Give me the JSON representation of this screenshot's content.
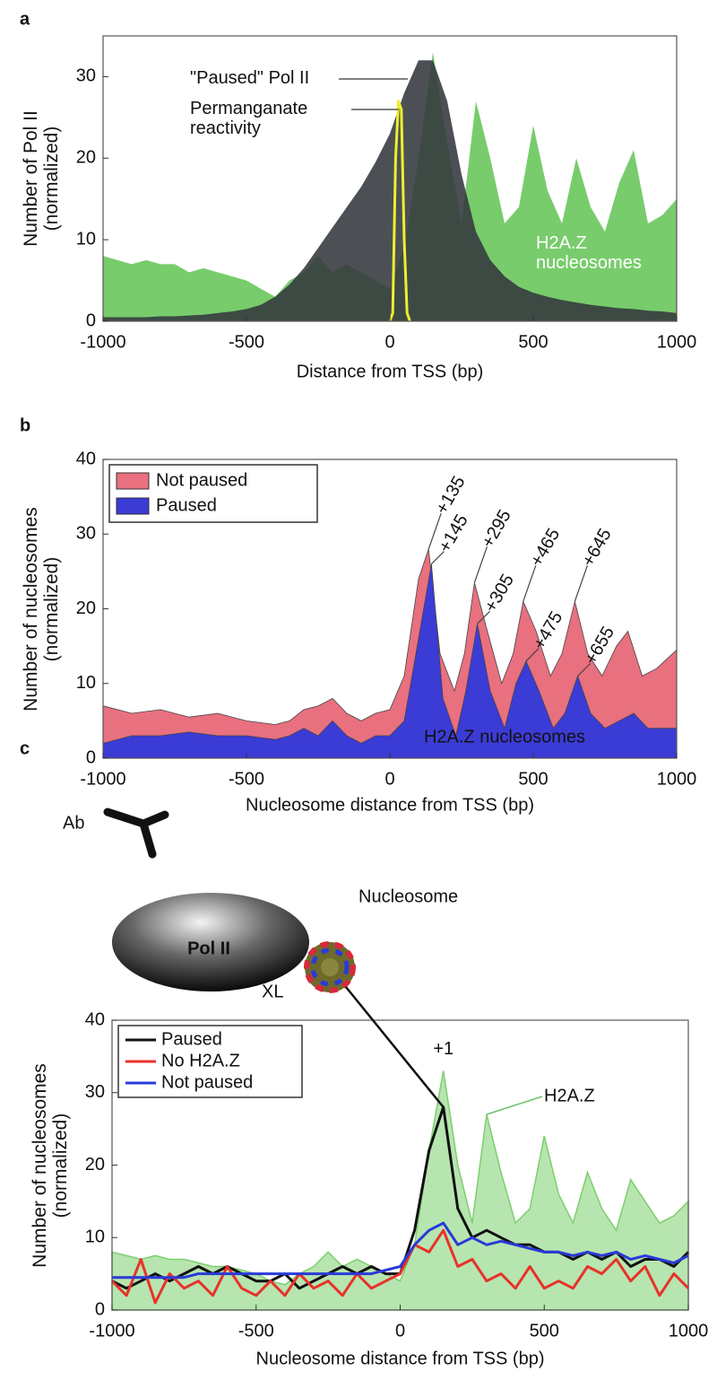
{
  "chart_data": [
    {
      "panel": "a",
      "type": "area",
      "xlabel": "Distance from TSS (bp)",
      "ylabel": "Number of Pol II (normalized)",
      "xlim": [
        -1000,
        1000
      ],
      "ylim": [
        0,
        35
      ],
      "xticks": [
        -1000,
        -500,
        0,
        500,
        1000
      ],
      "yticks": [
        0,
        10,
        20,
        30
      ],
      "series": [
        {
          "name": "H2A.Z nucleosomes",
          "color": "#78cc6c",
          "x": [
            -1000,
            -950,
            -900,
            -850,
            -800,
            -750,
            -700,
            -650,
            -600,
            -550,
            -500,
            -450,
            -400,
            -350,
            -300,
            -250,
            -200,
            -150,
            -100,
            -50,
            0,
            50,
            100,
            150,
            200,
            250,
            300,
            350,
            400,
            450,
            500,
            550,
            600,
            650,
            700,
            750,
            800,
            850,
            900,
            950,
            1000
          ],
          "values": [
            8,
            7.5,
            7,
            7.5,
            7,
            7,
            6,
            6.5,
            6,
            5.5,
            5,
            4,
            3,
            5,
            6,
            8,
            6,
            7,
            6,
            5,
            4,
            9,
            20,
            33,
            22,
            12,
            27,
            20,
            12,
            14,
            24,
            16,
            12,
            20,
            14,
            11,
            17,
            21,
            12,
            13,
            15
          ]
        },
        {
          "name": "\"Paused\" Pol II",
          "color": "#33383d",
          "x": [
            -1000,
            -950,
            -900,
            -850,
            -800,
            -750,
            -700,
            -650,
            -600,
            -550,
            -500,
            -450,
            -400,
            -350,
            -300,
            -250,
            -200,
            -150,
            -100,
            -50,
            0,
            50,
            100,
            150,
            200,
            250,
            300,
            350,
            400,
            450,
            500,
            550,
            600,
            650,
            700,
            750,
            800,
            850,
            900,
            950,
            1000
          ],
          "values": [
            0.5,
            0.5,
            0.5,
            0.5,
            0.6,
            0.6,
            0.7,
            0.8,
            1,
            1.2,
            1.5,
            2,
            3,
            4.5,
            6.5,
            9,
            11.5,
            14,
            16.5,
            19.5,
            23,
            28,
            32,
            32,
            27,
            18,
            11,
            7.5,
            5.5,
            4.2,
            3.5,
            3,
            2.6,
            2.3,
            2,
            1.8,
            1.6,
            1.5,
            1.3,
            1.2,
            1
          ]
        },
        {
          "name": "Permanganate reactivity",
          "color": "#eeee30",
          "type": "line",
          "x": [
            0,
            10,
            20,
            30,
            40,
            50,
            60,
            70
          ],
          "values": [
            0,
            1,
            20,
            27,
            26,
            10,
            1,
            0
          ]
        }
      ]
    },
    {
      "panel": "b",
      "type": "area",
      "xlabel": "Nucleosome distance from TSS (bp)",
      "ylabel": "Number of nucleosomes (normalized)",
      "xlim": [
        -1000,
        1000
      ],
      "ylim": [
        0,
        40
      ],
      "xticks": [
        -1000,
        -500,
        0,
        500,
        1000
      ],
      "yticks": [
        0,
        10,
        20,
        30,
        40
      ],
      "legend": "upper left",
      "annotation": "H2A.Z nucleosomes",
      "series": [
        {
          "name": "Not paused",
          "color": "#e8707f",
          "x": [
            -1000,
            -900,
            -800,
            -700,
            -600,
            -500,
            -400,
            -350,
            -300,
            -250,
            -200,
            -150,
            -100,
            -50,
            0,
            50,
            100,
            135,
            175,
            225,
            260,
            295,
            340,
            390,
            430,
            465,
            510,
            560,
            600,
            645,
            690,
            740,
            790,
            830,
            880,
            930,
            1000
          ],
          "values": [
            7,
            6,
            6.5,
            5.5,
            6,
            5,
            4.5,
            5,
            6.5,
            7,
            8,
            6,
            5,
            6,
            6.5,
            11,
            24,
            28,
            14,
            9,
            14,
            23.5,
            17,
            10,
            14,
            21,
            17,
            11,
            14,
            21,
            14,
            11,
            15,
            17,
            11,
            12,
            14.5
          ]
        },
        {
          "name": "Paused",
          "color": "#3b3bd6",
          "x": [
            -1000,
            -900,
            -800,
            -700,
            -600,
            -500,
            -400,
            -350,
            -300,
            -250,
            -200,
            -150,
            -100,
            -50,
            0,
            50,
            100,
            145,
            185,
            230,
            265,
            305,
            350,
            400,
            440,
            475,
            520,
            570,
            610,
            655,
            700,
            750,
            800,
            850,
            900,
            950,
            1000
          ],
          "values": [
            2,
            3,
            3,
            3.5,
            3,
            3,
            2.5,
            3,
            4,
            3,
            5,
            3,
            2,
            3,
            3,
            5,
            16,
            26,
            8,
            3,
            9,
            18,
            9,
            4,
            10,
            13,
            9,
            4,
            6,
            11,
            6,
            4,
            5,
            6,
            4,
            4,
            4
          ]
        }
      ],
      "peak_labels": [
        {
          "text": "+135",
          "x": 135,
          "series": 0
        },
        {
          "text": "+145",
          "x": 145,
          "series": 1
        },
        {
          "text": "+295",
          "x": 295,
          "series": 0
        },
        {
          "text": "+305",
          "x": 305,
          "series": 1
        },
        {
          "text": "+465",
          "x": 465,
          "series": 0
        },
        {
          "text": "+475",
          "x": 475,
          "series": 1
        },
        {
          "text": "+645",
          "x": 645,
          "series": 0
        },
        {
          "text": "+655",
          "x": 655,
          "series": 1
        }
      ]
    },
    {
      "panel": "c",
      "type": "line",
      "xlabel": "Nucleosome distance from TSS (bp)",
      "ylabel": "Number of nucleosomes (normalized)",
      "xlim": [
        -1000,
        1000
      ],
      "ylim": [
        0,
        40
      ],
      "xticks": [
        -1000,
        -500,
        0,
        500,
        1000
      ],
      "yticks": [
        0,
        10,
        20,
        30,
        40
      ],
      "legend": "upper left",
      "annotation": "+1",
      "diagram": {
        "antibody": "Ab",
        "polymerase": "Pol II",
        "nucleosome": "Nucleosome",
        "crosslink": "XL"
      },
      "x": [
        -1000,
        -950,
        -900,
        -850,
        -800,
        -750,
        -700,
        -650,
        -600,
        -550,
        -500,
        -450,
        -400,
        -350,
        -300,
        -250,
        -200,
        -150,
        -100,
        -50,
        0,
        50,
        100,
        150,
        200,
        250,
        300,
        350,
        400,
        450,
        500,
        550,
        600,
        650,
        700,
        750,
        800,
        850,
        900,
        950,
        1000
      ],
      "series": [
        {
          "name": "H2A.Z",
          "color": "#7ccf6e",
          "type": "area",
          "legend": false,
          "values": [
            8,
            7.5,
            7,
            7.5,
            7,
            7,
            6.5,
            6,
            6,
            5.5,
            5,
            4,
            3.5,
            5,
            6,
            8,
            6,
            7,
            6,
            5,
            4,
            9,
            22,
            33,
            20,
            12,
            27,
            19,
            12,
            14,
            24,
            16,
            12,
            19,
            14,
            11,
            18,
            15,
            12,
            13,
            15
          ]
        },
        {
          "name": "Paused",
          "color": "#111111",
          "values": [
            4,
            3,
            4,
            5,
            4,
            5,
            6,
            5,
            6,
            5,
            4,
            4,
            5,
            3,
            4,
            5,
            6,
            5,
            6,
            5,
            5,
            11,
            22,
            28,
            14,
            10,
            11,
            10,
            9,
            9,
            8,
            8,
            7,
            8,
            7,
            8,
            6,
            7,
            7,
            6,
            8
          ]
        },
        {
          "name": "No H2A.Z",
          "color": "#e8322a",
          "values": [
            4,
            2,
            7,
            1,
            5,
            3,
            4,
            2,
            6,
            3,
            2,
            4,
            2,
            5,
            3,
            4,
            2,
            5,
            3,
            4,
            5,
            9,
            8,
            11,
            6,
            7,
            4,
            5,
            3,
            6,
            3,
            4,
            3,
            6,
            5,
            7,
            4,
            6,
            2,
            5,
            3
          ]
        },
        {
          "name": "Not paused",
          "color": "#2a3ad8",
          "values": [
            4.5,
            4.5,
            4.5,
            4.5,
            4.5,
            4.5,
            5,
            5,
            5,
            5,
            5,
            5,
            5,
            5,
            5,
            5,
            5,
            5,
            5,
            5.5,
            6,
            9,
            11,
            12,
            9,
            10,
            9,
            9.5,
            9,
            8.5,
            8,
            8,
            7.5,
            8,
            7.5,
            8,
            7,
            7.5,
            7,
            6.5,
            7.5
          ]
        }
      ]
    }
  ]
}
